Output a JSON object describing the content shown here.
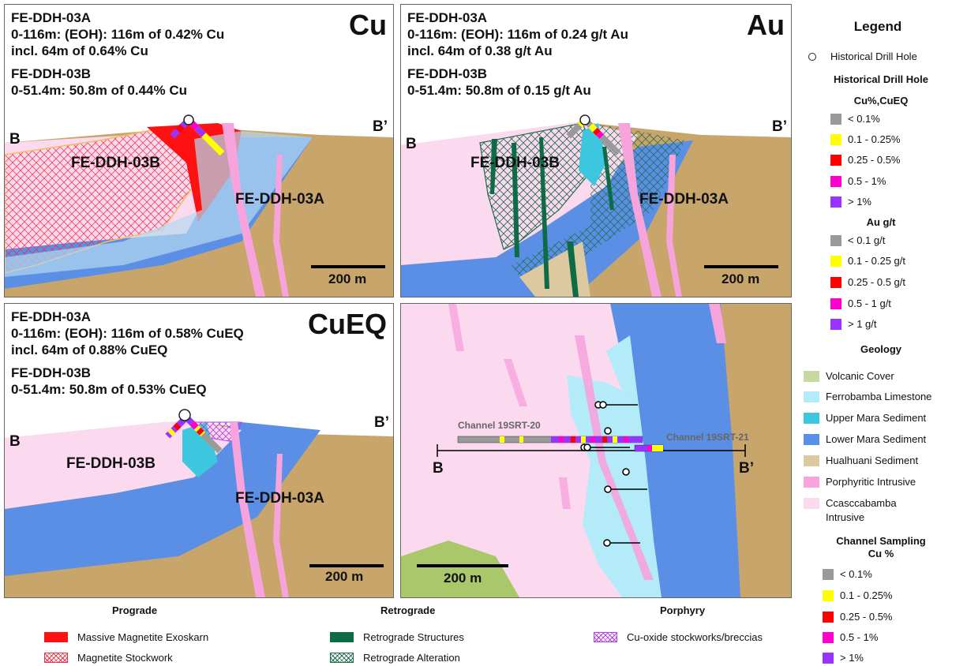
{
  "panels": {
    "cu": {
      "tag": "Cu",
      "lines_a": [
        "FE-DDH-03A",
        "0-116m: (EOH): 116m of 0.42% Cu",
        "incl. 64m of 0.64% Cu"
      ],
      "lines_b": [
        "FE-DDH-03B",
        "0-51.4m: 50.8m of 0.44% Cu"
      ],
      "left_label": "B",
      "right_label": "B’",
      "hole_b": "FE-DDH-03B",
      "hole_a": "FE-DDH-03A",
      "scale": "200 m"
    },
    "au": {
      "tag": "Au",
      "lines_a": [
        "FE-DDH-03A",
        "0-116m: (EOH): 116m of 0.24 g/t Au",
        "incl. 64m of 0.38 g/t Au"
      ],
      "lines_b": [
        "FE-DDH-03B",
        "0-51.4m: 50.8m of 0.15 g/t Au"
      ],
      "left_label": "B",
      "right_label": "B’",
      "hole_b": "FE-DDH-03B",
      "hole_a": "FE-DDH-03A",
      "scale": "200 m"
    },
    "cueq": {
      "tag": "CuEQ",
      "lines_a": [
        "FE-DDH-03A",
        "0-116m: (EOH): 116m of 0.58% CuEQ",
        "incl. 64m of 0.88% CuEQ"
      ],
      "lines_b": [
        "FE-DDH-03B",
        "0-51.4m: 50.8m of 0.53% CuEQ"
      ],
      "left_label": "B",
      "right_label": "B’",
      "hole_b": "FE-DDH-03B",
      "hole_a": "FE-DDH-03A",
      "scale": "200 m"
    },
    "map": {
      "channel1": "Channel 19SRT-20",
      "channel2": "Channel 19SRT-21",
      "left_label": "B",
      "right_label": "B’",
      "scale": "200 m"
    }
  },
  "legend": {
    "title": "Legend",
    "historical": "Historical Drill Hole",
    "historical_head": "Historical Drill Hole",
    "cu_head": "Cu%,CuEQ",
    "cu_items": [
      "< 0.1%",
      "0.1 - 0.25%",
      "0.25 - 0.5%",
      "0.5 - 1%",
      "> 1%"
    ],
    "au_head": "Au g/t",
    "au_items": [
      "< 0.1 g/t",
      "0.1 - 0.25 g/t",
      "0.25 - 0.5 g/t",
      "0.5 - 1 g/t",
      "> 1 g/t"
    ],
    "geo_head": "Geology",
    "geo_items": [
      "Volcanic Cover",
      "Ferrobamba Limestone",
      "Upper Mara Sediment",
      "Lower Mara Sediment",
      "Hualhuani Sediment",
      "Porphyritic Intrusive",
      "Ccasccabamba",
      "Intrusive"
    ],
    "chan_head1": "Channel Sampling",
    "chan_head2": "Cu %",
    "chan_items": [
      "< 0.1%",
      "0.1 - 0.25%",
      "0.25 - 0.5%",
      "0.5 - 1%",
      "> 1%"
    ]
  },
  "grade_colors": [
    "#9a9a9a",
    "#ffff00",
    "#ff0000",
    "#ff00cc",
    "#9933ff"
  ],
  "geo_colors": [
    "#c5d9a0",
    "#b3ecf8",
    "#3cc7df",
    "#5b8fe6",
    "#dcc9a0",
    "#f7a3dc",
    "#fbd9ef"
  ],
  "bottom": {
    "prograde": "Prograde",
    "retrograde": "Retrograde",
    "porphyry": "Porphyry",
    "massive": "Massive Magnetite Exoskarn",
    "stockwork": "Magnetite Stockwork",
    "structures": "Retrograde Structures",
    "alteration": "Retrograde Alteration",
    "cuoxide": "Cu-oxide stockworks/breccias"
  }
}
